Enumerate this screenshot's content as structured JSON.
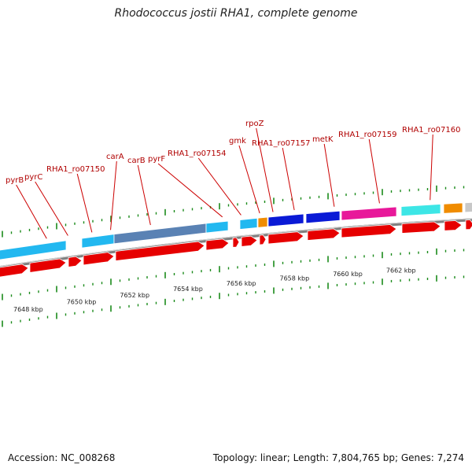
{
  "title": "Rhodococcus jostii RHA1, complete genome",
  "footer": {
    "accession": "Accession: NC_008268",
    "topology": "Topology: linear; Length: 7,804,765 bp; Genes: 7,274"
  },
  "scale_labels": [
    {
      "kbp": 7648,
      "text": "7648 kbp"
    },
    {
      "kbp": 7650,
      "text": "7650 kbp"
    },
    {
      "kbp": 7652,
      "text": "7652 kbp"
    },
    {
      "kbp": 7654,
      "text": "7654 kbp"
    },
    {
      "kbp": 7656,
      "text": "7656 kbp"
    },
    {
      "kbp": 7658,
      "text": "7658 kbp"
    },
    {
      "kbp": 7660,
      "text": "7660 kbp"
    },
    {
      "kbp": 7662,
      "text": "7662 kbp"
    }
  ],
  "gene_labels": [
    {
      "name": "pyrB",
      "kbp": 7648.6
    },
    {
      "name": "pyrC",
      "kbp": 7649.4
    },
    {
      "name": "RHA1_ro07150",
      "kbp": 7650.3
    },
    {
      "name": "carA",
      "kbp": 7651.0
    },
    {
      "name": "carB",
      "kbp": 7652.5
    },
    {
      "name": "pyrF",
      "kbp": 7655.2
    },
    {
      "name": "RHA1_ro07154",
      "kbp": 7655.9
    },
    {
      "name": "gmk",
      "kbp": 7656.6
    },
    {
      "name": "rpoZ",
      "kbp": 7657.1
    },
    {
      "name": "RHA1_ro07157",
      "kbp": 7657.9
    },
    {
      "name": "metK",
      "kbp": 7659.4
    },
    {
      "name": "RHA1_ro07159",
      "kbp": 7661.1
    },
    {
      "name": "RHA1_ro07160",
      "kbp": 7663.0
    }
  ],
  "colors": {
    "gene_forward": "#e60000",
    "feature_light_blue": "#22b8f0",
    "feature_steel": "#5a82b4",
    "feature_orange": "#f08c00",
    "feature_dark_blue": "#0a1ad6",
    "feature_magenta": "#e8189a",
    "feature_cyan": "#3de6e6",
    "feature_grey": "#c8c8c8",
    "backbone": "#808080",
    "tick": "#1a8a1a",
    "label_line": "#cc0000"
  }
}
